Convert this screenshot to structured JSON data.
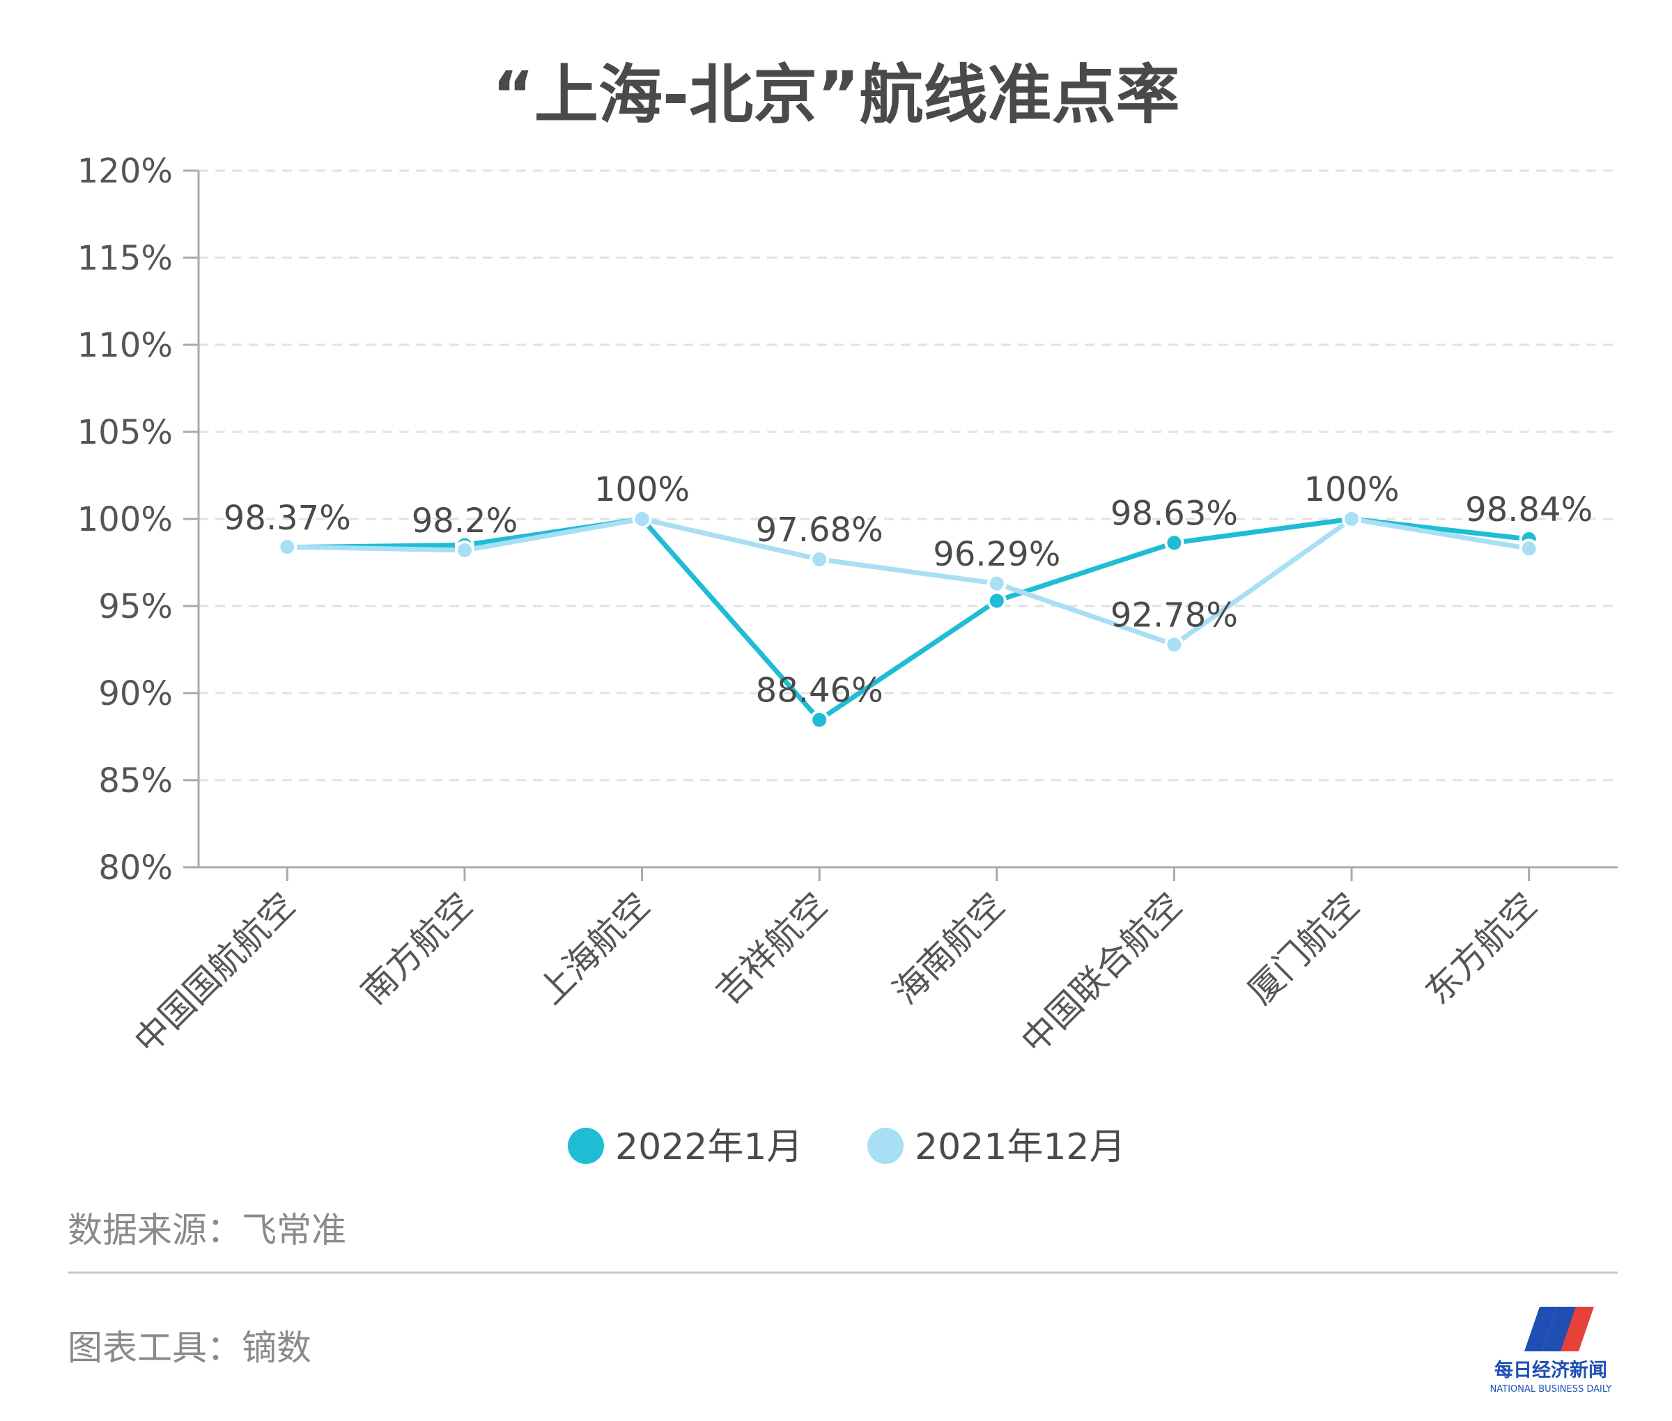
{
  "chart_data": {
    "type": "line",
    "title": "“上海-北京”航线准点率",
    "categories": [
      "中国国航航空",
      "南方航空",
      "上海航空",
      "吉祥航空",
      "海南航空",
      "中国联合航空",
      "厦门航空",
      "东方航空"
    ],
    "yticks": [
      "80%",
      "85%",
      "90%",
      "95%",
      "100%",
      "105%",
      "110%",
      "115%",
      "120%"
    ],
    "ylim": [
      80,
      120
    ],
    "grid": true,
    "legend_position": "bottom",
    "series": [
      {
        "name": "2022年1月",
        "color": "#1fbcd5",
        "values": [
          98.37,
          98.5,
          100,
          88.46,
          95.3,
          98.63,
          100,
          98.84
        ]
      },
      {
        "name": "2021年12月",
        "color": "#a8dff5",
        "values": [
          98.4,
          98.2,
          100,
          97.68,
          96.29,
          92.78,
          100,
          98.3
        ]
      }
    ],
    "data_labels": [
      {
        "category": "中国国航航空",
        "value": 98.37,
        "text": "98.37%"
      },
      {
        "category": "南方航空",
        "value": 98.2,
        "text": "98.2%"
      },
      {
        "category": "上海航空",
        "value": 100,
        "text": "100%"
      },
      {
        "category": "吉祥航空",
        "value": 97.68,
        "text": "97.68%"
      },
      {
        "category": "吉祥航空",
        "value": 88.46,
        "text": "88.46%"
      },
      {
        "category": "海南航空",
        "value": 96.29,
        "text": "96.29%"
      },
      {
        "category": "中国联合航空",
        "value": 98.63,
        "text": "98.63%"
      },
      {
        "category": "中国联合航空",
        "value": 92.78,
        "text": "92.78%"
      },
      {
        "category": "厦门航空",
        "value": 100,
        "text": "100%"
      },
      {
        "category": "东方航空",
        "value": 98.84,
        "text": "98.84%"
      }
    ]
  },
  "footer": {
    "source": "数据来源：飞常准",
    "tool": "图表工具：镝数"
  },
  "logo": {
    "name_cn": "每日经济新闻",
    "name_en": "NATIONAL BUSINESS DAILY",
    "colors": [
      "#1f4fb3",
      "#e8413a"
    ]
  }
}
